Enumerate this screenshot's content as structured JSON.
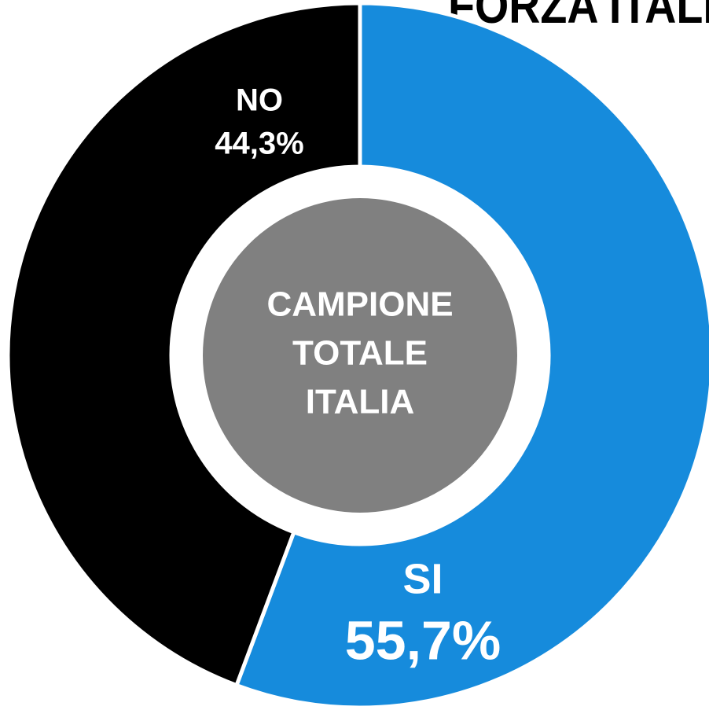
{
  "chart_data": {
    "type": "donut",
    "title": "FORZA ITALIA",
    "categories": [
      "SI",
      "NO"
    ],
    "values": [
      55.7,
      44.3
    ],
    "value_labels": [
      "55,7%",
      "44,3%"
    ],
    "colors": [
      "#168bdc",
      "#000000"
    ],
    "center_text": [
      "CAMPIONE",
      "TOTALE",
      "ITALIA"
    ],
    "center_color": "#808080"
  }
}
